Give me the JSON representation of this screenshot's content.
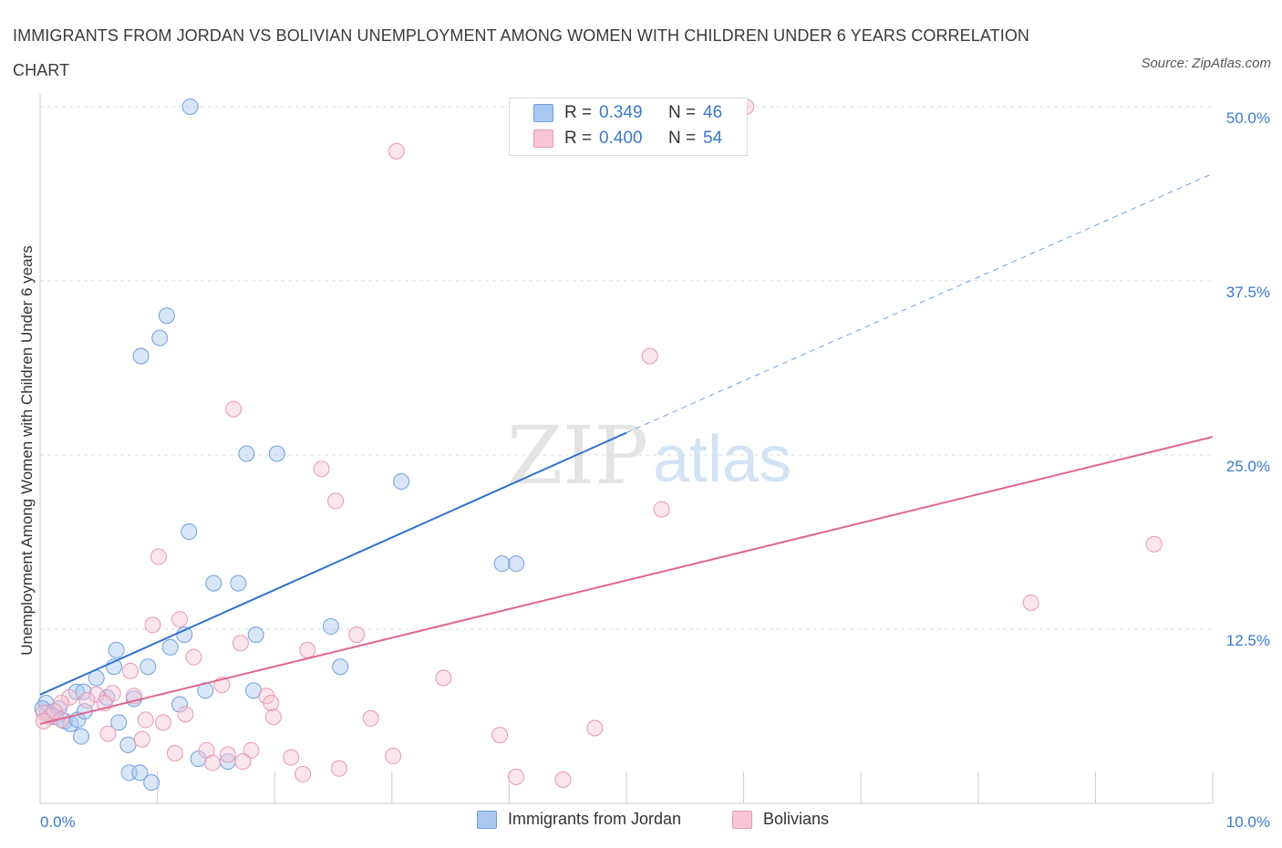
{
  "title": "IMMIGRANTS FROM JORDAN VS BOLIVIAN UNEMPLOYMENT AMONG WOMEN WITH CHILDREN UNDER 6 YEARS CORRELATION CHART",
  "source": "Source: ZipAtlas.com",
  "watermark": {
    "zip": "ZIP",
    "atlas": "atlas"
  },
  "legend_stats": [
    {
      "r_label": "R =",
      "r_value": "0.349",
      "n_label": "N =",
      "n_value": "46",
      "color": "#a8c8f0",
      "stroke": "#6fa0e0"
    },
    {
      "r_label": "R =",
      "r_value": "0.400",
      "n_label": "N =",
      "n_value": "54",
      "color": "#f7c5d4",
      "stroke": "#e898b2"
    }
  ],
  "legend_series": [
    {
      "label": "Immigrants from Jordan",
      "color": "#a8c8f0",
      "stroke": "#6fa0e0"
    },
    {
      "label": "Bolivians",
      "color": "#f7c5d4",
      "stroke": "#e898b2"
    }
  ],
  "chart_data": {
    "type": "scatter",
    "title": "IMMIGRANTS FROM JORDAN VS BOLIVIAN UNEMPLOYMENT AMONG WOMEN WITH CHILDREN UNDER 6 YEARS CORRELATION CHART",
    "xlabel": "",
    "ylabel": "Unemployment Among Women with Children Under 6 years",
    "xlim": [
      0,
      10
    ],
    "ylim": [
      0,
      50
    ],
    "x_tick_labels": [
      "0.0%",
      "10.0%"
    ],
    "y_ticks": [
      12.5,
      25,
      37.5,
      50
    ],
    "y_tick_labels": [
      "12.5%",
      "25.0%",
      "37.5%",
      "50.0%"
    ],
    "grid": true,
    "legend_position": "bottom",
    "series": [
      {
        "name": "Immigrants from Jordan",
        "color": "#6fa0e0",
        "trend": {
          "x": [
            0,
            5.0
          ],
          "y": [
            7.8,
            26.6
          ],
          "dashed_extension_to": [
            10,
            45.2
          ]
        },
        "points": [
          [
            1.28,
            50.0
          ],
          [
            1.08,
            35.0
          ],
          [
            1.02,
            33.4
          ],
          [
            0.86,
            32.1
          ],
          [
            1.76,
            25.1
          ],
          [
            2.02,
            25.1
          ],
          [
            3.08,
            23.1
          ],
          [
            1.27,
            19.5
          ],
          [
            3.94,
            17.2
          ],
          [
            4.06,
            17.2
          ],
          [
            1.48,
            15.8
          ],
          [
            1.69,
            15.8
          ],
          [
            2.48,
            12.7
          ],
          [
            1.23,
            12.1
          ],
          [
            1.84,
            12.1
          ],
          [
            1.11,
            11.2
          ],
          [
            0.65,
            11.0
          ],
          [
            0.92,
            9.8
          ],
          [
            2.56,
            9.8
          ],
          [
            0.48,
            9.0
          ],
          [
            0.63,
            9.8
          ],
          [
            0.31,
            8.0
          ],
          [
            0.37,
            8.0
          ],
          [
            0.57,
            7.6
          ],
          [
            0.8,
            7.5
          ],
          [
            1.41,
            8.1
          ],
          [
            1.82,
            8.1
          ],
          [
            1.19,
            7.1
          ],
          [
            0.05,
            7.2
          ],
          [
            0.06,
            6.5
          ],
          [
            0.13,
            6.2
          ],
          [
            0.16,
            6.8
          ],
          [
            0.21,
            5.9
          ],
          [
            0.26,
            5.7
          ],
          [
            0.32,
            6.0
          ],
          [
            0.38,
            6.6
          ],
          [
            0.35,
            4.8
          ],
          [
            0.67,
            5.8
          ],
          [
            0.75,
            4.2
          ],
          [
            1.35,
            3.2
          ],
          [
            1.6,
            3.0
          ],
          [
            0.76,
            2.2
          ],
          [
            0.85,
            2.2
          ],
          [
            0.95,
            1.5
          ],
          [
            0.02,
            6.8
          ],
          [
            0.1,
            6.3
          ]
        ]
      },
      {
        "name": "Bolivians",
        "color": "#e898b2",
        "trend": {
          "x": [
            0,
            10
          ],
          "y": [
            5.7,
            26.3
          ]
        },
        "points": [
          [
            6.02,
            50.0
          ],
          [
            3.04,
            46.8
          ],
          [
            5.2,
            32.1
          ],
          [
            1.65,
            28.3
          ],
          [
            2.4,
            24.0
          ],
          [
            2.52,
            21.7
          ],
          [
            5.3,
            21.1
          ],
          [
            9.5,
            18.6
          ],
          [
            1.01,
            17.7
          ],
          [
            8.45,
            14.4
          ],
          [
            0.96,
            12.8
          ],
          [
            1.19,
            13.2
          ],
          [
            2.7,
            12.1
          ],
          [
            1.71,
            11.5
          ],
          [
            2.28,
            11.0
          ],
          [
            1.31,
            10.5
          ],
          [
            3.44,
            9.0
          ],
          [
            0.77,
            9.5
          ],
          [
            1.55,
            8.5
          ],
          [
            0.48,
            7.8
          ],
          [
            0.62,
            7.9
          ],
          [
            0.55,
            7.2
          ],
          [
            0.25,
            7.6
          ],
          [
            0.18,
            7.2
          ],
          [
            0.4,
            7.4
          ],
          [
            0.8,
            7.7
          ],
          [
            1.93,
            7.7
          ],
          [
            1.97,
            7.2
          ],
          [
            0.03,
            6.5
          ],
          [
            0.08,
            6.2
          ],
          [
            0.12,
            6.6
          ],
          [
            0.18,
            6.0
          ],
          [
            0.03,
            5.9
          ],
          [
            0.9,
            6.0
          ],
          [
            1.05,
            5.8
          ],
          [
            1.24,
            6.4
          ],
          [
            1.99,
            6.2
          ],
          [
            2.82,
            6.1
          ],
          [
            0.58,
            5.0
          ],
          [
            0.87,
            4.6
          ],
          [
            4.73,
            5.4
          ],
          [
            3.92,
            4.9
          ],
          [
            1.42,
            3.8
          ],
          [
            1.6,
            3.5
          ],
          [
            1.8,
            3.8
          ],
          [
            1.15,
            3.6
          ],
          [
            2.14,
            3.3
          ],
          [
            3.01,
            3.4
          ],
          [
            1.47,
            2.9
          ],
          [
            1.73,
            3.0
          ],
          [
            2.24,
            2.1
          ],
          [
            2.55,
            2.5
          ],
          [
            4.06,
            1.9
          ],
          [
            4.46,
            1.7
          ]
        ]
      }
    ]
  }
}
